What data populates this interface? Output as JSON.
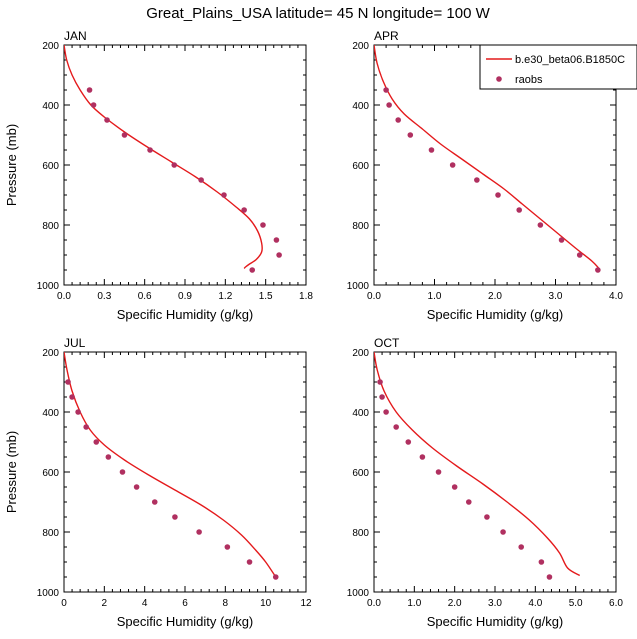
{
  "title": "Great_Plains_USA  latitude= 45 N longitude= 100 W",
  "legend": {
    "model_label": "b.e30_beta06.B1850C",
    "obs_label": "raobs",
    "model_color": "#e41a1c",
    "obs_color": "#b03060"
  },
  "chart_data": [
    {
      "type": "line",
      "panel": "JAN",
      "xlabel": "Specific Humidity (g/kg)",
      "ylabel": "Pressure (mb)",
      "xlim": [
        0,
        1.8
      ],
      "ylim": [
        200,
        1000
      ],
      "y_inverted": true,
      "xticks": [
        0.0,
        0.3,
        0.6,
        0.9,
        1.2,
        1.5,
        1.8
      ],
      "xtick_labels": [
        "0.0",
        "0.3",
        "0.6",
        "0.9",
        "1.2",
        "1.5",
        "1.8"
      ],
      "yticks": [
        200,
        400,
        600,
        800,
        1000
      ],
      "series": [
        {
          "name": "b.e30_beta06.B1850C",
          "kind": "line",
          "x": [
            0.0,
            0.02,
            0.06,
            0.12,
            0.2,
            0.3,
            0.45,
            0.62,
            0.8,
            0.98,
            1.14,
            1.28,
            1.38,
            1.44,
            1.47,
            1.47,
            1.43,
            1.38,
            1.35,
            1.34
          ],
          "y": [
            200,
            250,
            300,
            350,
            400,
            440,
            490,
            540,
            590,
            640,
            690,
            740,
            780,
            820,
            860,
            890,
            915,
            930,
            940,
            945
          ]
        },
        {
          "name": "raobs",
          "kind": "scatter",
          "x": [
            0.19,
            0.22,
            0.32,
            0.45,
            0.64,
            0.82,
            1.02,
            1.19,
            1.34,
            1.48,
            1.58,
            1.6,
            1.4
          ],
          "y": [
            350,
            400,
            450,
            500,
            550,
            600,
            650,
            700,
            750,
            800,
            850,
            900,
            950
          ]
        }
      ]
    },
    {
      "type": "line",
      "panel": "APR",
      "xlabel": "Specific Humidity (g/kg)",
      "ylabel": "Pressure (mb)",
      "xlim": [
        0,
        4.0
      ],
      "ylim": [
        200,
        1000
      ],
      "y_inverted": true,
      "xticks": [
        0.0,
        1.0,
        2.0,
        3.0,
        4.0
      ],
      "xtick_labels": [
        "0.0",
        "1.0",
        "2.0",
        "3.0",
        "4.0"
      ],
      "yticks": [
        200,
        400,
        600,
        800,
        1000
      ],
      "series": [
        {
          "name": "b.e30_beta06.B1850C",
          "kind": "line",
          "x": [
            0.0,
            0.05,
            0.15,
            0.3,
            0.5,
            0.8,
            1.1,
            1.45,
            1.8,
            2.15,
            2.45,
            2.75,
            3.05,
            3.35,
            3.6,
            3.72
          ],
          "y": [
            200,
            260,
            320,
            380,
            430,
            480,
            530,
            580,
            630,
            680,
            730,
            780,
            830,
            880,
            920,
            945
          ]
        },
        {
          "name": "raobs",
          "kind": "scatter",
          "x": [
            0.2,
            0.25,
            0.4,
            0.6,
            0.95,
            1.3,
            1.7,
            2.05,
            2.4,
            2.75,
            3.1,
            3.4,
            3.7
          ],
          "y": [
            350,
            400,
            450,
            500,
            550,
            600,
            650,
            700,
            750,
            800,
            850,
            900,
            950
          ]
        }
      ]
    },
    {
      "type": "line",
      "panel": "JUL",
      "xlabel": "Specific Humidity (g/kg)",
      "ylabel": "Pressure (mb)",
      "xlim": [
        0,
        12
      ],
      "ylim": [
        200,
        1000
      ],
      "y_inverted": true,
      "xticks": [
        0,
        2,
        4,
        6,
        8,
        10,
        12
      ],
      "xtick_labels": [
        "0",
        "2",
        "4",
        "6",
        "8",
        "10",
        "12"
      ],
      "yticks": [
        200,
        400,
        600,
        800,
        1000
      ],
      "series": [
        {
          "name": "b.e30_beta06.B1850C",
          "kind": "line",
          "x": [
            0.0,
            0.15,
            0.4,
            0.8,
            1.3,
            2.0,
            3.0,
            4.2,
            5.5,
            6.8,
            7.9,
            8.8,
            9.5,
            10.0,
            10.5
          ],
          "y": [
            200,
            260,
            330,
            400,
            460,
            510,
            560,
            610,
            660,
            710,
            760,
            810,
            860,
            900,
            950
          ]
        },
        {
          "name": "raobs",
          "kind": "scatter",
          "x": [
            0.2,
            0.4,
            0.7,
            1.1,
            1.6,
            2.2,
            2.9,
            3.6,
            4.5,
            5.5,
            6.7,
            8.1,
            9.2,
            10.5
          ],
          "y": [
            300,
            350,
            400,
            450,
            500,
            550,
            600,
            650,
            700,
            750,
            800,
            850,
            900,
            950
          ]
        }
      ]
    },
    {
      "type": "line",
      "panel": "OCT",
      "xlabel": "Specific Humidity (g/kg)",
      "ylabel": "Pressure (mb)",
      "xlim": [
        0,
        6.0
      ],
      "ylim": [
        200,
        1000
      ],
      "y_inverted": true,
      "xticks": [
        0.0,
        1.0,
        2.0,
        3.0,
        4.0,
        5.0,
        6.0
      ],
      "xtick_labels": [
        "0.0",
        "1.0",
        "2.0",
        "3.0",
        "4.0",
        "5.0",
        "6.0"
      ],
      "yticks": [
        200,
        400,
        600,
        800,
        1000
      ],
      "series": [
        {
          "name": "b.e30_beta06.B1850C",
          "kind": "line",
          "x": [
            0.0,
            0.08,
            0.25,
            0.55,
            0.95,
            1.45,
            2.05,
            2.7,
            3.3,
            3.85,
            4.3,
            4.6,
            4.8,
            5.1
          ],
          "y": [
            200,
            260,
            330,
            400,
            460,
            520,
            580,
            640,
            700,
            760,
            820,
            870,
            920,
            945
          ]
        },
        {
          "name": "raobs",
          "kind": "scatter",
          "x": [
            0.15,
            0.2,
            0.3,
            0.55,
            0.85,
            1.2,
            1.6,
            2.0,
            2.35,
            2.8,
            3.2,
            3.65,
            4.15,
            4.35
          ],
          "y": [
            300,
            350,
            400,
            450,
            500,
            550,
            600,
            650,
            700,
            750,
            800,
            850,
            900,
            950
          ]
        }
      ]
    }
  ]
}
